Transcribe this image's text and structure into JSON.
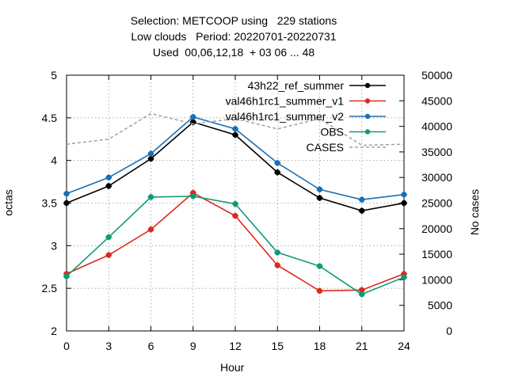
{
  "title_lines": [
    "Selection: METCOOP using   229 stations",
    "Low clouds   Period: 20220701-20220731",
    "Used  00,06,12,18  + 03 06 ... 48"
  ],
  "chart_data": {
    "type": "line",
    "x": [
      0,
      3,
      6,
      9,
      12,
      15,
      18,
      21,
      24
    ],
    "xlabel": "Hour",
    "ylabel": "octas",
    "y2label": "No cases",
    "xlim": [
      0,
      24
    ],
    "ylim": [
      2,
      5
    ],
    "y2lim": [
      0,
      50000
    ],
    "xticks": [
      "0",
      "3",
      "6",
      "9",
      "12",
      "15",
      "18",
      "21",
      "24"
    ],
    "yticks": [
      "2",
      "2.5",
      "3",
      "3.5",
      "4",
      "4.5",
      "5"
    ],
    "y2ticks": [
      "0",
      "5000",
      "10000",
      "15000",
      "20000",
      "25000",
      "30000",
      "35000",
      "40000",
      "45000",
      "50000"
    ],
    "grid": true,
    "legend_position": "top-right",
    "series": [
      {
        "name": "43h22_ref_summer",
        "color": "#000000",
        "axis": "y1",
        "style": "solid",
        "values": [
          3.5,
          3.7,
          4.02,
          4.45,
          4.3,
          3.86,
          3.56,
          3.41,
          3.5
        ]
      },
      {
        "name": "val46h1rc1_summer_v1",
        "color": "#dd2a1b",
        "axis": "y1",
        "style": "solid",
        "values": [
          2.67,
          2.89,
          3.19,
          3.62,
          3.35,
          2.77,
          2.47,
          2.48,
          2.67
        ]
      },
      {
        "name": "val46h1rc1_summer_v2",
        "color": "#1a6fb5",
        "axis": "y1",
        "style": "solid",
        "values": [
          3.61,
          3.8,
          4.08,
          4.51,
          4.37,
          3.97,
          3.66,
          3.54,
          3.6
        ]
      },
      {
        "name": "OBS",
        "color": "#109a78",
        "axis": "y1",
        "style": "solid",
        "values": [
          2.64,
          3.1,
          3.57,
          3.58,
          3.49,
          2.92,
          2.76,
          2.43,
          2.63
        ]
      },
      {
        "name": "CASES",
        "color": "#a0a0a0",
        "axis": "y2",
        "style": "dashed",
        "values": [
          36500,
          37500,
          42500,
          40500,
          41500,
          39500,
          41500,
          36300,
          36500
        ]
      }
    ]
  }
}
